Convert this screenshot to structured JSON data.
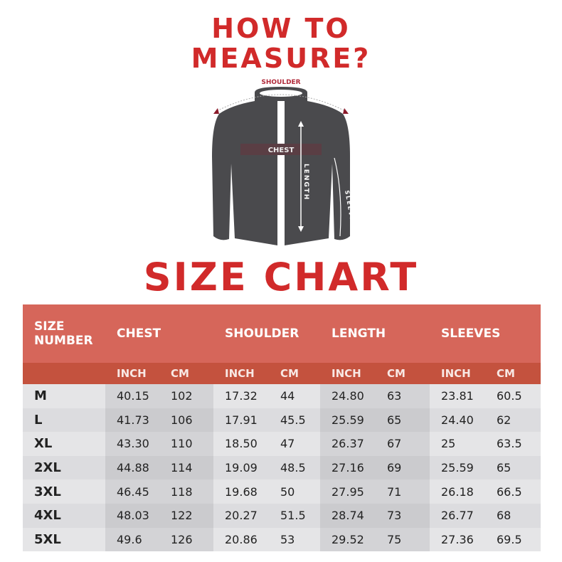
{
  "title_line1": "HOW TO",
  "title_line2": "MEASURE?",
  "diagram": {
    "shoulder": "SHOULDER",
    "chest": "CHEST",
    "length": "LENGTH",
    "sleeves": "SLEEVES"
  },
  "size_chart_title": "SIZE CHART",
  "colors": {
    "accent": "#d12a2a",
    "header": "#d6665a",
    "subheader": "#c4523e",
    "jacket": "#4a4a4d"
  },
  "table": {
    "size_header": "SIZE NUMBER",
    "groups": [
      "CHEST",
      "SHOULDER",
      "LENGTH",
      "SLEEVES"
    ],
    "units": [
      "INCH",
      "CM",
      "INCH",
      "CM",
      "INCH",
      "CM",
      "INCH",
      "CM"
    ],
    "rows": [
      [
        "M",
        "40.15",
        "102",
        "17.32",
        "44",
        "24.80",
        "63",
        "23.81",
        "60.5"
      ],
      [
        "L",
        "41.73",
        "106",
        "17.91",
        "45.5",
        "25.59",
        "65",
        "24.40",
        "62"
      ],
      [
        "XL",
        "43.30",
        "110",
        "18.50",
        "47",
        "26.37",
        "67",
        "25",
        "63.5"
      ],
      [
        "2XL",
        "44.88",
        "114",
        "19.09",
        "48.5",
        "27.16",
        "69",
        "25.59",
        "65"
      ],
      [
        "3XL",
        "46.45",
        "118",
        "19.68",
        "50",
        "27.95",
        "71",
        "26.18",
        "66.5"
      ],
      [
        "4XL",
        "48.03",
        "122",
        "20.27",
        "51.5",
        "28.74",
        "73",
        "26.77",
        "68"
      ],
      [
        "5XL",
        "49.6",
        "126",
        "20.86",
        "53",
        "29.52",
        "75",
        "27.36",
        "69.5"
      ]
    ]
  }
}
